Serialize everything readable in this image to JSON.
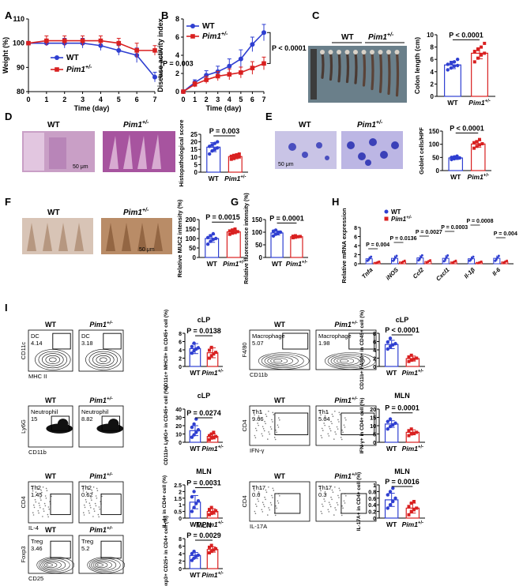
{
  "panel_letters": {
    "A": "A",
    "B": "B",
    "C": "C",
    "D": "D",
    "E": "E",
    "F": "F",
    "G": "G",
    "H": "H",
    "I": "I"
  },
  "legend": {
    "wt": "WT",
    "pim": "Pim1",
    "sup": "+/-"
  },
  "colors": {
    "wt": "#2f3fd1",
    "pim": "#d92020"
  },
  "scale": {
    "um": "50 μm"
  },
  "panelC": {
    "wt": "WT",
    "pim": "Pim1",
    "sup": "+/-"
  },
  "photo_labels": {
    "wt": "WT",
    "pim": "Pim1",
    "sup": "+/-"
  },
  "flow": {
    "dc": {
      "gate": "DC",
      "wt": "4.14",
      "pim": "3.18",
      "x": "MHC II",
      "y": "CD11c"
    },
    "mac": {
      "gate": "Macrophage",
      "wt": "5.07",
      "pim": "1.98",
      "x": "CD11b",
      "y": "F4/80"
    },
    "neu": {
      "gate": "Neutrophil",
      "wt": "15",
      "pim": "8.82",
      "x": "CD11b",
      "y": "Ly6G"
    },
    "th1": {
      "gate": "Th1",
      "wt": "9.66",
      "pim": "5.64",
      "x": "IFN-γ",
      "y": "CD4"
    },
    "th2": {
      "gate": "Th2",
      "wt": "1.45",
      "pim": "0.62",
      "x": "IL-4",
      "y": "CD4"
    },
    "th17": {
      "gate": "Th17",
      "wt": "0.6",
      "pim": "0.3",
      "x": "IL-17A",
      "y": "CD4"
    },
    "treg": {
      "gate": "Treg",
      "wt": "3.46",
      "pim": "5.2",
      "x": "CD25",
      "y": "Foxp3"
    }
  },
  "chart_data": [
    {
      "id": "A",
      "type": "line",
      "x": [
        0,
        1,
        2,
        3,
        4,
        5,
        6,
        7
      ],
      "xlabel": "Time (day)",
      "ylabel": "Weight (%)",
      "ylim": [
        80,
        110
      ],
      "yticks": [
        80,
        90,
        100,
        110
      ],
      "series": [
        {
          "name": "WT",
          "values": [
            100,
            100,
            100,
            100,
            99,
            97,
            95,
            86
          ],
          "err": [
            0,
            1,
            2,
            2,
            2,
            2,
            3,
            2
          ]
        },
        {
          "name": "Pim1+/-",
          "values": [
            100,
            101,
            101,
            101,
            101,
            100,
            97,
            97
          ],
          "err": [
            0,
            2,
            2,
            2,
            2,
            2,
            3,
            2
          ]
        }
      ],
      "annotation": "P = 0.003"
    },
    {
      "id": "B",
      "type": "line",
      "x": [
        0,
        1,
        2,
        3,
        4,
        5,
        6,
        7
      ],
      "xlabel": "Time (day)",
      "ylabel": "Disease activity index",
      "ylim": [
        0,
        8
      ],
      "yticks": [
        0,
        2,
        4,
        6,
        8
      ],
      "series": [
        {
          "name": "WT",
          "values": [
            0,
            1,
            1.8,
            2.2,
            2.8,
            3.6,
            5.2,
            6.5
          ],
          "err": [
            0,
            0.3,
            0.5,
            0.6,
            0.8,
            1,
            0.8,
            0.9
          ]
        },
        {
          "name": "Pim1+/-",
          "values": [
            0,
            0.8,
            1.3,
            1.7,
            1.9,
            2.1,
            2.6,
            3.1
          ],
          "err": [
            0,
            0.3,
            0.4,
            0.5,
            0.6,
            0.6,
            0.7,
            0.7
          ]
        }
      ],
      "annotation": "P < 0.0001"
    },
    {
      "id": "C",
      "type": "bar",
      "categories": [
        "WT",
        "Pim1+/-"
      ],
      "values": [
        5.1,
        7.0
      ],
      "err": [
        0.6,
        0.9
      ],
      "ylabel": "Colon length (cm)",
      "ylim": [
        0,
        10
      ],
      "yticks": [
        0,
        2,
        4,
        6,
        8,
        10
      ],
      "annotation": "P < 0.0001",
      "points": [
        [
          4.3,
          4.6,
          4.9,
          5.0,
          5.2,
          5.4,
          5.6,
          6.0
        ],
        [
          5.6,
          6.2,
          6.7,
          7.0,
          7.3,
          7.6,
          8.0,
          8.6
        ]
      ]
    },
    {
      "id": "D",
      "type": "bar",
      "categories": [
        "WT",
        "Pim1+/-"
      ],
      "values": [
        16.5,
        10.3
      ],
      "err": [
        3,
        1.5
      ],
      "ylabel": "Histopathological score",
      "ylim": [
        0,
        25
      ],
      "yticks": [
        0,
        5,
        10,
        15,
        20,
        25
      ],
      "annotation": "P = 0.003",
      "points": [
        [
          12,
          14,
          15,
          16,
          17,
          18,
          19,
          20
        ],
        [
          8.5,
          9,
          10,
          10,
          10.5,
          11,
          11.5,
          12
        ]
      ]
    },
    {
      "id": "E",
      "type": "bar",
      "categories": [
        "WT",
        "Pim1+/-"
      ],
      "values": [
        48,
        101
      ],
      "err": [
        6,
        12
      ],
      "ylabel": "Goblet cells/HPF",
      "ylim": [
        0,
        150
      ],
      "yticks": [
        0,
        50,
        100,
        150
      ],
      "annotation": "P < 0.0001",
      "points": [
        [
          42,
          45,
          47,
          48,
          50,
          52,
          55
        ],
        [
          85,
          92,
          98,
          102,
          106,
          110,
          118
        ]
      ]
    },
    {
      "id": "F",
      "type": "bar",
      "categories": [
        "WT",
        "Pim1+/-"
      ],
      "values": [
        100,
        135
      ],
      "err": [
        20,
        10
      ],
      "ylabel": "Relative MUC2 intensity (%)",
      "ylim": [
        0,
        200
      ],
      "yticks": [
        0,
        50,
        100,
        150,
        200
      ],
      "annotation": "P = 0.0015",
      "points": [
        [
          70,
          85,
          95,
          100,
          105,
          115,
          125
        ],
        [
          122,
          128,
          133,
          136,
          140,
          145,
          150
        ]
      ]
    },
    {
      "id": "G",
      "type": "bar",
      "categories": [
        "WT",
        "Pim1+/-"
      ],
      "values": [
        97,
        82
      ],
      "err": [
        8,
        3
      ],
      "ylabel": "Relative fluorescence intensity (%)",
      "ylim": [
        0,
        150
      ],
      "yticks": [
        0,
        50,
        100,
        150
      ],
      "annotation": "P = 0.0001",
      "points": [
        [
          85,
          92,
          97,
          100,
          104,
          108
        ],
        [
          78,
          80,
          82,
          83,
          84,
          86
        ]
      ]
    },
    {
      "id": "H",
      "type": "bar",
      "categories": [
        "Tnfa",
        "iNOS",
        "Ccl2",
        "Cxcl1",
        "Il-1β",
        "Il-6"
      ],
      "ylabel": "Relative mRNA expression",
      "ylim": [
        0,
        8
      ],
      "yticks": [
        0,
        2,
        4,
        6,
        8
      ],
      "series": [
        {
          "name": "WT",
          "values": [
            1.1,
            1.2,
            1.3,
            1.2,
            1.1,
            1.2
          ],
          "err": [
            0.5,
            0.6,
            0.6,
            0.7,
            0.5,
            0.6
          ]
        },
        {
          "name": "Pim1+/-",
          "values": [
            0.3,
            0.4,
            0.5,
            0.4,
            0.3,
            0.4
          ],
          "err": [
            0.2,
            0.3,
            0.3,
            0.3,
            0.2,
            0.3
          ]
        }
      ],
      "annotations": [
        "P = 0.004",
        "P = 0.0136",
        "P = 0.0027",
        "P = 0.0003",
        "P = 0.0008",
        "P = 0.004"
      ]
    },
    {
      "id": "I-DC",
      "type": "bar",
      "categories": [
        "WT",
        "Pim1+/-"
      ],
      "values": [
        4.3,
        3.3
      ],
      "err": [
        1.2,
        1.2
      ],
      "title": "cLP",
      "ylabel": "CD11c+ MHCII+ in CD45+ cell (%)",
      "ylim": [
        0,
        8
      ],
      "yticks": [
        0,
        2,
        4,
        6,
        8
      ],
      "annotation": "P = 0.0138",
      "points": [
        [
          3.2,
          3.8,
          4.2,
          4.5,
          4.8,
          5.6
        ],
        [
          2.0,
          2.6,
          3.0,
          3.4,
          3.9,
          4.6
        ]
      ]
    },
    {
      "id": "I-Mac",
      "type": "bar",
      "categories": [
        "WT",
        "Pim1+/-"
      ],
      "values": [
        5.3,
        1.9
      ],
      "err": [
        1.0,
        0.6
      ],
      "title": "cLP",
      "ylabel": "CD11b+ F4/80+ in CD45+ cell (%)",
      "ylim": [
        0,
        8
      ],
      "yticks": [
        0,
        2,
        4,
        6,
        8
      ],
      "annotation": "P < 0.0001",
      "points": [
        [
          4.2,
          4.8,
          5.2,
          5.5,
          5.9,
          6.8
        ],
        [
          1.2,
          1.5,
          1.8,
          2.0,
          2.3,
          2.7
        ]
      ]
    },
    {
      "id": "I-Neu",
      "type": "bar",
      "categories": [
        "WT",
        "Pim1+/-"
      ],
      "values": [
        14,
        7
      ],
      "err": [
        6,
        3
      ],
      "title": "cLP",
      "ylabel": "CD11b+ Ly6G+ in CD45+ cell (%)",
      "ylim": [
        0,
        40
      ],
      "yticks": [
        0,
        10,
        20,
        30,
        40
      ],
      "annotation": "P = 0.0274",
      "points": [
        [
          6,
          9,
          12,
          15,
          18,
          22,
          28
        ],
        [
          3,
          5,
          6,
          7,
          8,
          10,
          12
        ]
      ]
    },
    {
      "id": "I-Th1",
      "type": "bar",
      "categories": [
        "WT",
        "Pim1+/-"
      ],
      "values": [
        11,
        6
      ],
      "err": [
        2,
        1.5
      ],
      "title": "MLN",
      "ylabel": "IFN-γ+ in CD4+ cell (%)",
      "ylim": [
        0,
        20
      ],
      "yticks": [
        0,
        5,
        10,
        15,
        20
      ],
      "annotation": "P = 0.0001",
      "points": [
        [
          8,
          9.5,
          10.5,
          11.5,
          12.5,
          14
        ],
        [
          4,
          5,
          5.5,
          6,
          7,
          8
        ]
      ]
    },
    {
      "id": "I-Th2",
      "type": "bar",
      "categories": [
        "WT",
        "Pim1+/-"
      ],
      "values": [
        1.2,
        0.5
      ],
      "err": [
        0.5,
        0.2
      ],
      "title": "MLN",
      "ylabel": "IL-4+ in CD4+ cell (%)",
      "ylim": [
        0,
        2.5
      ],
      "yticks": [
        0,
        0.5,
        1,
        1.5,
        2,
        2.5
      ],
      "annotation": "P = 0.0031",
      "points": [
        [
          0.5,
          0.8,
          1.1,
          1.3,
          1.6,
          2.0
        ],
        [
          0.25,
          0.35,
          0.45,
          0.55,
          0.65,
          0.8
        ]
      ]
    },
    {
      "id": "I-Th17",
      "type": "bar",
      "categories": [
        "WT",
        "Pim1+/-"
      ],
      "values": [
        0.55,
        0.3
      ],
      "err": [
        0.2,
        0.15
      ],
      "title": "MLN",
      "ylabel": "IL-17A+ in CD4+ cell (%)",
      "ylim": [
        0,
        1.0
      ],
      "yticks": [
        0,
        0.2,
        0.4,
        0.6,
        0.8,
        1.0
      ],
      "annotation": "P = 0.0016",
      "points": [
        [
          0.3,
          0.4,
          0.5,
          0.6,
          0.7,
          0.8,
          0.9
        ],
        [
          0.1,
          0.2,
          0.25,
          0.3,
          0.35,
          0.45,
          0.5
        ]
      ]
    },
    {
      "id": "I-Treg",
      "type": "bar",
      "categories": [
        "WT",
        "Pim1+/-"
      ],
      "values": [
        3.5,
        5.1
      ],
      "err": [
        0.8,
        0.7
      ],
      "title": "MLN",
      "ylabel": "Foxp3+ CD25+ in CD4+ cell (%)",
      "ylim": [
        0,
        8
      ],
      "yticks": [
        0,
        2,
        4,
        6,
        8
      ],
      "annotation": "P = 0.0029",
      "points": [
        [
          2.2,
          2.8,
          3.3,
          3.6,
          4.0,
          4.6
        ],
        [
          4.2,
          4.6,
          5.0,
          5.3,
          5.7,
          6.2
        ]
      ]
    }
  ]
}
